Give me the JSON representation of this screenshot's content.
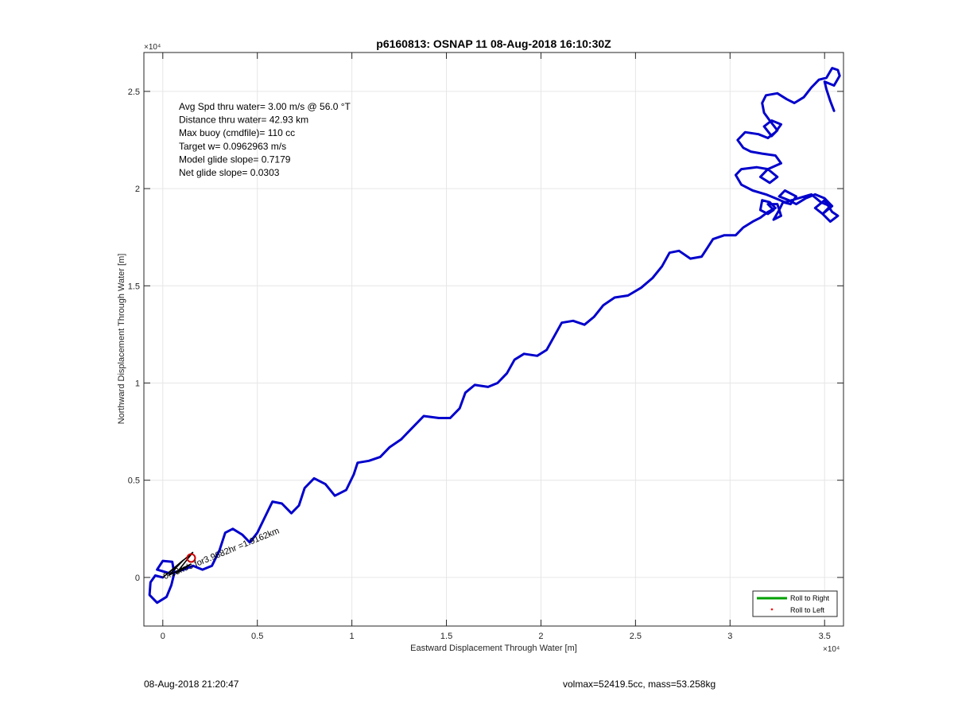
{
  "chart_data": {
    "type": "line",
    "title": "p6160813: OSNAP 11 08-Aug-2018 16:10:30Z",
    "xlabel": "Eastward Displacement Through Water [m]",
    "ylabel": "Northward Displacement Through Water [m]",
    "x_exponent_label": "×10⁴",
    "y_exponent_label": "×10⁴",
    "xlim": [
      -1000,
      36000
    ],
    "ylim": [
      -2500,
      27000
    ],
    "xticks": [
      0,
      5000,
      10000,
      15000,
      20000,
      25000,
      30000,
      35000
    ],
    "xtick_labels": [
      "0",
      "0.5",
      "1",
      "1.5",
      "2",
      "2.5",
      "3",
      "3.5"
    ],
    "yticks": [
      0,
      5000,
      10000,
      15000,
      20000,
      25000
    ],
    "ytick_labels": [
      "0",
      "0.5",
      "1",
      "1.5",
      "2",
      "2.5"
    ],
    "grid": true,
    "annotations": [
      "Avg Spd thru water=  3.00 m/s @  56.0 °T",
      "Distance thru water= 42.93 km",
      "Max buoy (cmdfile)= 110 cc",
      "Target w= 0.0962963 m/s",
      "Model glide slope= 0.7179",
      "Net glide slope= 0.0303"
    ],
    "current_label": "0.13m/s for3.9682hr =1.9162km",
    "legend": {
      "placement": "bottom-right",
      "entries": [
        {
          "label": "Roll to Right",
          "color": "#00a000",
          "style": "line"
        },
        {
          "label": "Roll to Left",
          "color": "#ff0000",
          "style": "dot"
        }
      ]
    },
    "series": [
      {
        "color": "#0000cc",
        "points": [
          [
            0,
            0
          ],
          [
            -400,
            100
          ],
          [
            -650,
            -250
          ],
          [
            -700,
            -900
          ],
          [
            -300,
            -1300
          ],
          [
            200,
            -1000
          ],
          [
            450,
            -400
          ],
          [
            600,
            200
          ],
          [
            500,
            800
          ],
          [
            0,
            850
          ],
          [
            -300,
            400
          ],
          [
            400,
            200
          ],
          [
            1100,
            400
          ],
          [
            1600,
            600
          ],
          [
            2100,
            400
          ],
          [
            2600,
            600
          ],
          [
            3000,
            1400
          ],
          [
            3300,
            2300
          ],
          [
            3700,
            2500
          ],
          [
            4200,
            2200
          ],
          [
            4600,
            1800
          ],
          [
            5000,
            2300
          ],
          [
            5400,
            3100
          ],
          [
            5800,
            3900
          ],
          [
            6300,
            3800
          ],
          [
            6800,
            3300
          ],
          [
            7200,
            3700
          ],
          [
            7500,
            4600
          ],
          [
            8000,
            5100
          ],
          [
            8600,
            4800
          ],
          [
            9100,
            4200
          ],
          [
            9700,
            4500
          ],
          [
            10100,
            5300
          ],
          [
            10300,
            5900
          ],
          [
            10900,
            6000
          ],
          [
            11500,
            6200
          ],
          [
            12000,
            6700
          ],
          [
            12600,
            7100
          ],
          [
            13200,
            7700
          ],
          [
            13800,
            8300
          ],
          [
            14600,
            8200
          ],
          [
            15200,
            8200
          ],
          [
            15700,
            8700
          ],
          [
            16000,
            9500
          ],
          [
            16500,
            9900
          ],
          [
            17200,
            9800
          ],
          [
            17700,
            10000
          ],
          [
            18200,
            10500
          ],
          [
            18600,
            11200
          ],
          [
            19100,
            11500
          ],
          [
            19800,
            11400
          ],
          [
            20300,
            11700
          ],
          [
            20700,
            12400
          ],
          [
            21100,
            13100
          ],
          [
            21700,
            13200
          ],
          [
            22300,
            13000
          ],
          [
            22800,
            13400
          ],
          [
            23300,
            14000
          ],
          [
            23900,
            14400
          ],
          [
            24600,
            14500
          ],
          [
            25300,
            14900
          ],
          [
            25900,
            15400
          ],
          [
            26400,
            16000
          ],
          [
            26800,
            16700
          ],
          [
            27300,
            16800
          ],
          [
            27900,
            16400
          ],
          [
            28500,
            16500
          ],
          [
            29100,
            17400
          ],
          [
            29700,
            17600
          ],
          [
            30300,
            17600
          ],
          [
            30700,
            18000
          ],
          [
            31200,
            18300
          ],
          [
            31600,
            18500
          ],
          [
            32000,
            18800
          ],
          [
            32400,
            19000
          ],
          [
            32100,
            19300
          ],
          [
            31700,
            19400
          ],
          [
            31600,
            18900
          ],
          [
            32000,
            18700
          ],
          [
            32300,
            18900
          ],
          [
            32000,
            19200
          ],
          [
            32500,
            19200
          ],
          [
            32700,
            18600
          ],
          [
            32300,
            18400
          ],
          [
            32600,
            18900
          ],
          [
            32800,
            19300
          ],
          [
            33200,
            19200
          ],
          [
            33500,
            19600
          ],
          [
            32900,
            19900
          ],
          [
            32600,
            19600
          ],
          [
            33100,
            19400
          ],
          [
            33500,
            19200
          ],
          [
            34000,
            19500
          ],
          [
            34500,
            19700
          ],
          [
            35000,
            19500
          ],
          [
            35400,
            19100
          ],
          [
            34900,
            18700
          ],
          [
            34500,
            19000
          ],
          [
            35000,
            19400
          ],
          [
            35400,
            18800
          ],
          [
            35700,
            18600
          ],
          [
            35300,
            18300
          ],
          [
            34900,
            18700
          ],
          [
            35300,
            19100
          ],
          [
            34800,
            19300
          ],
          [
            34300,
            19700
          ],
          [
            33600,
            19500
          ],
          [
            32900,
            19300
          ],
          [
            32400,
            19500
          ],
          [
            31900,
            19700
          ],
          [
            31200,
            19900
          ],
          [
            30600,
            20200
          ],
          [
            30300,
            20700
          ],
          [
            30600,
            21000
          ],
          [
            31400,
            21100
          ],
          [
            32000,
            21000
          ],
          [
            32500,
            20600
          ],
          [
            32100,
            20300
          ],
          [
            31600,
            20600
          ],
          [
            32000,
            21000
          ],
          [
            32700,
            21300
          ],
          [
            32400,
            21700
          ],
          [
            31700,
            21800
          ],
          [
            31100,
            21900
          ],
          [
            30700,
            22100
          ],
          [
            30400,
            22500
          ],
          [
            30800,
            22900
          ],
          [
            31500,
            22800
          ],
          [
            32000,
            22600
          ],
          [
            32400,
            22900
          ],
          [
            32700,
            23300
          ],
          [
            32200,
            23500
          ],
          [
            31800,
            23200
          ],
          [
            32200,
            22700
          ],
          [
            32500,
            23000
          ],
          [
            32100,
            23500
          ],
          [
            31800,
            23900
          ],
          [
            31700,
            24400
          ],
          [
            31900,
            24800
          ],
          [
            32500,
            24900
          ],
          [
            33000,
            24600
          ],
          [
            33400,
            24400
          ],
          [
            33900,
            24700
          ],
          [
            34300,
            25200
          ],
          [
            34700,
            25600
          ],
          [
            35100,
            25700
          ],
          [
            35400,
            26200
          ],
          [
            35700,
            26100
          ],
          [
            35800,
            25800
          ],
          [
            35500,
            25300
          ],
          [
            35000,
            25500
          ],
          [
            35100,
            25100
          ],
          [
            35300,
            24500
          ],
          [
            35500,
            24000
          ]
        ]
      }
    ],
    "current_vector": {
      "color": "#000000",
      "points": [
        [
          0,
          0
        ],
        [
          1600,
          1300
        ],
        [
          700,
          200
        ],
        [
          1500,
          700
        ],
        [
          300,
          100
        ],
        [
          1100,
          900
        ],
        [
          0,
          0
        ]
      ]
    },
    "start_marker": {
      "x": 1500,
      "y": 1000,
      "color": "#cc0000"
    }
  },
  "footer": {
    "left": "08-Aug-2018 21:20:47",
    "right": "volmax=52419.5cc, mass=53.258kg"
  }
}
